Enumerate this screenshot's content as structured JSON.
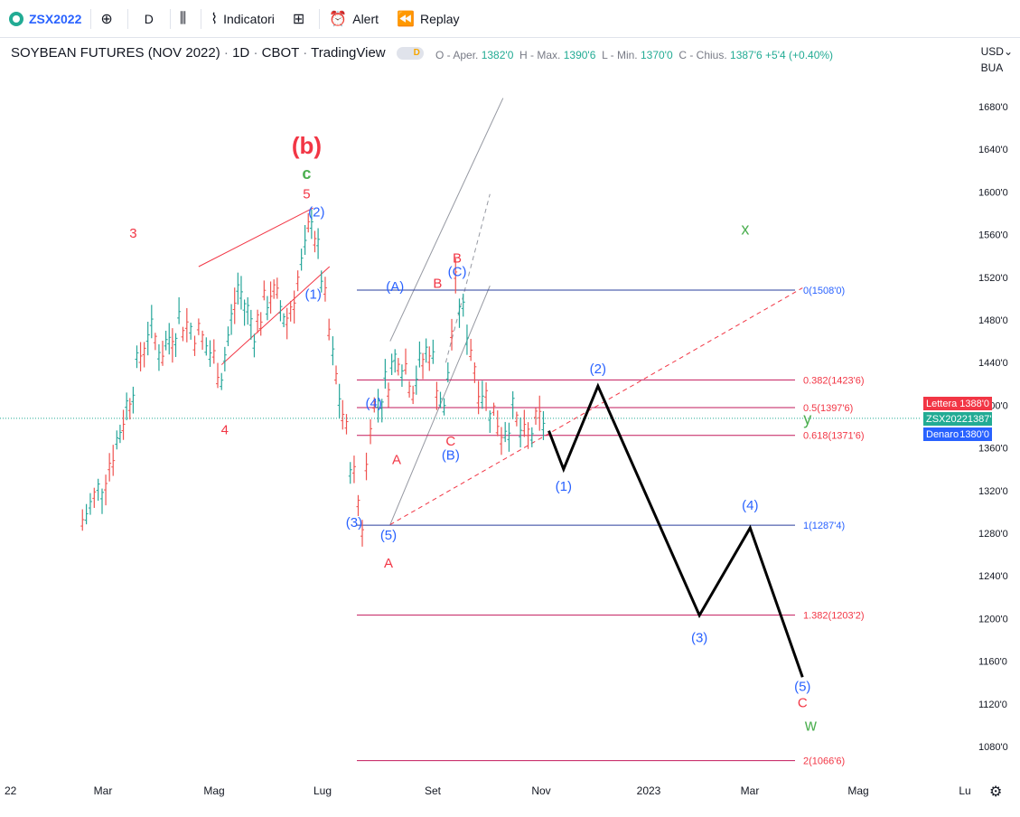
{
  "toolbar": {
    "symbol": "ZSX2022",
    "interval": "D",
    "indicators_label": "Indicatori",
    "alert_label": "Alert",
    "replay_label": "Replay"
  },
  "legend": {
    "title": "SOYBEAN FUTURES (NOV 2022)",
    "interval": "1D",
    "exchange": "CBOT",
    "source": "TradingView",
    "pill": "D"
  },
  "ohlc": {
    "o_label": "O - Aper.",
    "o": "1382'0",
    "h_label": "H - Max.",
    "h": "1390'6",
    "l_label": "L - Min.",
    "l": "1370'0",
    "c_label": "C - Chius.",
    "c": "1387'6",
    "change": "+5'4 (+0.40%)"
  },
  "right_controls": {
    "currency": "USD",
    "unit": "BUA"
  },
  "price_tags": [
    {
      "label": "Lettera",
      "value": "1388'0",
      "color": "#f23645"
    },
    {
      "label": "ZSX2022",
      "value": "1387'6",
      "color": "#22ab94"
    },
    {
      "label": "Denaro",
      "value": "1380'0",
      "color": "#2962ff"
    }
  ],
  "chart_data": {
    "type": "line",
    "title": "SOYBEAN FUTURES (NOV 2022) · 1D · CBOT",
    "y_ticks": [
      "1680'0",
      "1640'0",
      "1600'0",
      "1560'0",
      "1520'0",
      "1480'0",
      "1440'0",
      "1400'0",
      "1360'0",
      "1320'0",
      "1280'0",
      "1240'0",
      "1200'0",
      "1160'0",
      "1120'0",
      "1080'0"
    ],
    "y_tick_values": [
      1680,
      1640,
      1600,
      1560,
      1520,
      1480,
      1440,
      1400,
      1360,
      1320,
      1280,
      1240,
      1200,
      1160,
      1120,
      1080
    ],
    "x_ticks": [
      "22",
      "Mar",
      "Mag",
      "Lug",
      "Set",
      "Nov",
      "2023",
      "Mar",
      "Mag",
      "Lu"
    ],
    "ylim": [
      1060,
      1720
    ],
    "grid": false,
    "price_series": {
      "name": "ZSX2022",
      "x": [
        "2022-01-20",
        "2022-02-01",
        "2022-02-10",
        "2022-02-20",
        "2022-03-01",
        "2022-03-10",
        "2022-03-20",
        "2022-04-01",
        "2022-04-15",
        "2022-04-25",
        "2022-05-05",
        "2022-05-15",
        "2022-05-25",
        "2022-06-05",
        "2022-06-09",
        "2022-06-15",
        "2022-06-22",
        "2022-06-28",
        "2022-07-05",
        "2022-07-10",
        "2022-07-15",
        "2022-07-22",
        "2022-08-01",
        "2022-08-10",
        "2022-08-20",
        "2022-08-29",
        "2022-09-05",
        "2022-09-12",
        "2022-09-19",
        "2022-09-26",
        "2022-10-03",
        "2022-10-10",
        "2022-10-17",
        "2022-10-24",
        "2022-10-31"
      ],
      "y": [
        1290,
        1325,
        1365,
        1420,
        1470,
        1450,
        1480,
        1465,
        1430,
        1510,
        1470,
        1505,
        1480,
        1540,
        1580,
        1520,
        1440,
        1390,
        1330,
        1288,
        1390,
        1410,
        1450,
        1420,
        1455,
        1390,
        1508,
        1470,
        1420,
        1400,
        1375,
        1390,
        1365,
        1378,
        1388
      ]
    },
    "projection": {
      "name": "projected path",
      "x": [
        "2022-11-01",
        "2022-11-10",
        "2022-12-01",
        "2023-02-01",
        "2023-03-04",
        "2023-04-05"
      ],
      "y": [
        1376,
        1340,
        1418,
        1203,
        1285,
        1145
      ]
    },
    "fib_levels": [
      {
        "label": "0(1508'0)",
        "value": 1508
      },
      {
        "label": "0.382(1423'6)",
        "value": 1423.75
      },
      {
        "label": "0.5(1397'6)",
        "value": 1397.75
      },
      {
        "label": "0.618(1371'6)",
        "value": 1371.75
      },
      {
        "label": "1(1287'4)",
        "value": 1287.5
      },
      {
        "label": "1.382(1203'2)",
        "value": 1203.25
      },
      {
        "label": "2(1066'6)",
        "value": 1066.75
      }
    ],
    "wave_labels": [
      {
        "text": "(b)",
        "x": "2022-06-06",
        "y": 1636,
        "color": "#f23645"
      },
      {
        "text": "c",
        "x": "2022-06-06",
        "y": 1612,
        "color": "#4caf50"
      },
      {
        "text": "5",
        "x": "2022-06-06",
        "y": 1594,
        "color": "#f23645"
      },
      {
        "text": "(2)",
        "x": "2022-06-12",
        "y": 1577,
        "color": "#2962ff"
      },
      {
        "text": "3",
        "x": "2022-02-20",
        "y": 1557,
        "color": "#f23645"
      },
      {
        "text": "(1)",
        "x": "2022-06-10",
        "y": 1500,
        "color": "#2962ff"
      },
      {
        "text": "4",
        "x": "2022-04-17",
        "y": 1373,
        "color": "#f23645"
      },
      {
        "text": "(4)",
        "x": "2022-07-17",
        "y": 1398,
        "color": "#2962ff"
      },
      {
        "text": "(3)",
        "x": "2022-07-05",
        "y": 1286,
        "color": "#2962ff"
      },
      {
        "text": "(5)",
        "x": "2022-07-26",
        "y": 1274,
        "color": "#2962ff"
      },
      {
        "text": "A",
        "x": "2022-07-26",
        "y": 1248,
        "color": "#f23645"
      },
      {
        "text": "(A)",
        "x": "2022-07-30",
        "y": 1507,
        "color": "#2962ff"
      },
      {
        "text": "A",
        "x": "2022-07-31",
        "y": 1345,
        "color": "#f23645"
      },
      {
        "text": "B",
        "x": "2022-08-25",
        "y": 1510,
        "color": "#f23645"
      },
      {
        "text": "B",
        "x": "2022-09-06",
        "y": 1534,
        "color": "#f23645"
      },
      {
        "text": "(C)",
        "x": "2022-09-06",
        "y": 1521,
        "color": "#2962ff"
      },
      {
        "text": "C",
        "x": "2022-09-02",
        "y": 1362,
        "color": "#f23645"
      },
      {
        "text": "(B)",
        "x": "2022-09-02",
        "y": 1349,
        "color": "#2962ff"
      },
      {
        "text": "(1)",
        "x": "2022-11-10",
        "y": 1320,
        "color": "#2962ff"
      },
      {
        "text": "(2)",
        "x": "2022-12-01",
        "y": 1430,
        "color": "#2962ff"
      },
      {
        "text": "(3)",
        "x": "2023-02-01",
        "y": 1178,
        "color": "#2962ff"
      },
      {
        "text": "(4)",
        "x": "2023-03-04",
        "y": 1302,
        "color": "#2962ff"
      },
      {
        "text": "(5)",
        "x": "2023-04-05",
        "y": 1132,
        "color": "#2962ff"
      },
      {
        "text": "C",
        "x": "2023-04-05",
        "y": 1117,
        "color": "#f23645"
      },
      {
        "text": "w",
        "x": "2023-04-10",
        "y": 1095,
        "color": "#4caf50"
      },
      {
        "text": "x",
        "x": "2023-03-01",
        "y": 1560,
        "color": "#4caf50"
      },
      {
        "text": "y",
        "x": "2023-04-08",
        "y": 1382,
        "color": "#4caf50"
      }
    ]
  }
}
